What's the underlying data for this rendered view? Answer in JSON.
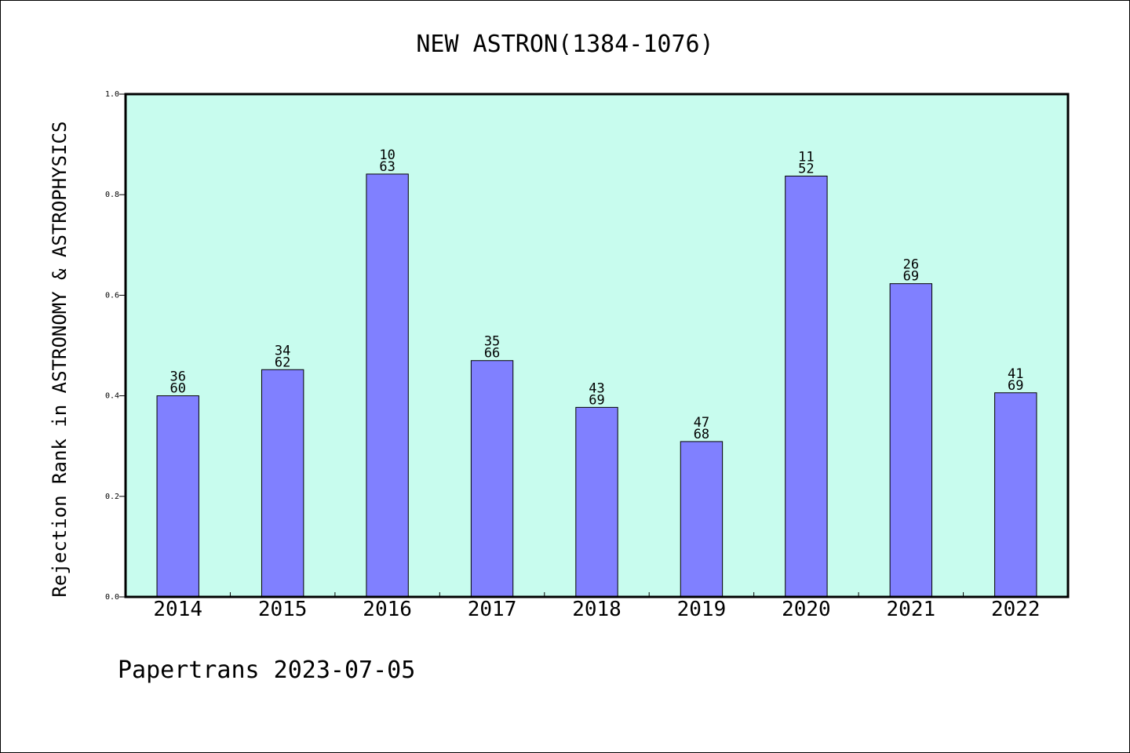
{
  "footer": {
    "credit": "Papertrans 2023-07-05"
  },
  "colors": {
    "plot_background": "#c8fcee",
    "bar_fill": "#8080ff",
    "bar_stroke": "#000000",
    "axis": "#000000"
  },
  "chart_data": {
    "type": "bar",
    "title": "NEW ASTRON(1384-1076)",
    "xlabel": "",
    "ylabel": "Rejection Rank in ASTRONOMY & ASTROPHYSICS",
    "ylim": [
      0,
      1.0
    ],
    "yticks": [
      "0.0",
      "0.2",
      "0.4",
      "0.6",
      "0.8",
      "1.0"
    ],
    "grid": false,
    "categories": [
      "2014",
      "2015",
      "2016",
      "2017",
      "2018",
      "2019",
      "2020",
      "2021",
      "2022"
    ],
    "values": [
      0.4,
      0.452,
      0.841,
      0.47,
      0.377,
      0.309,
      0.837,
      0.623,
      0.406
    ],
    "labels_top": [
      "36",
      "34",
      "10",
      "35",
      "43",
      "47",
      "11",
      "26",
      "41"
    ],
    "labels_bottom": [
      "60",
      "62",
      "63",
      "66",
      "69",
      "68",
      "52",
      "69",
      "69"
    ]
  }
}
